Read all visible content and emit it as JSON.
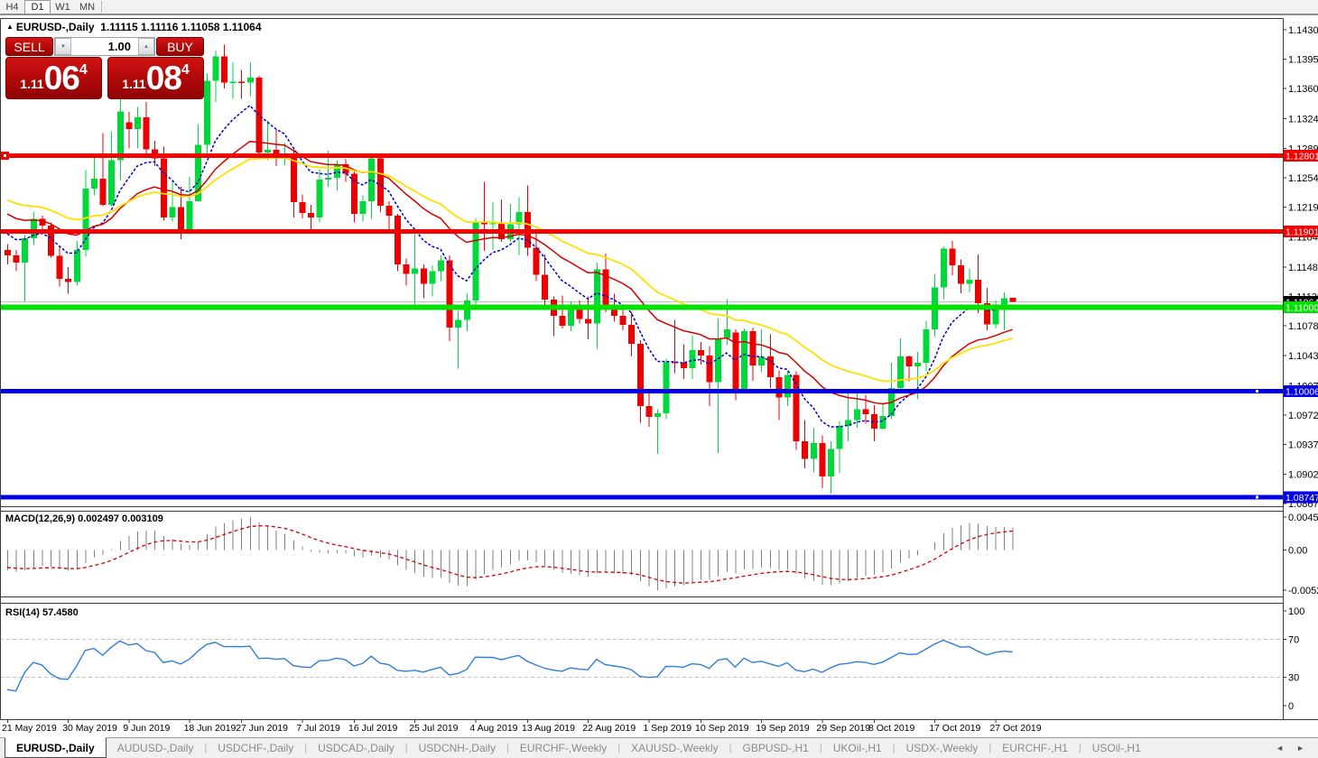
{
  "toolbar": {
    "timeframes": [
      {
        "label": "H4",
        "active": false
      },
      {
        "label": "D1",
        "active": true
      },
      {
        "label": "W1",
        "active": false
      },
      {
        "label": "MN",
        "active": false
      }
    ]
  },
  "chart": {
    "symbol_arrow_icon": "▲",
    "title_symbol": "EURUSD-,Daily",
    "title_ohlc": "1.11115 1.11116 1.11058 1.11064"
  },
  "trade": {
    "sell_label": "SELL",
    "buy_label": "BUY",
    "volume": "1.00",
    "volume_down_icon": "▼",
    "volume_up_icon": "▲",
    "sell_price": {
      "prefix": "1.11",
      "big": "06",
      "sup": "4"
    },
    "buy_price": {
      "prefix": "1.11",
      "big": "08",
      "sup": "4"
    }
  },
  "indicators": {
    "macd": {
      "label": "MACD(12,26,9) 0.002497 0.003109",
      "params": {
        "fast": 12,
        "slow": 26,
        "signal": 9
      },
      "current_main": "0.002497",
      "current_signal": "0.003109",
      "axis_labels": {
        "top": "0.004536",
        "zero": "0.00",
        "bottom": "-0.005205"
      }
    },
    "rsi": {
      "label": "RSI(14) 57.4580",
      "period": 14,
      "current_value": "57.4580",
      "axis_labels": [
        "100",
        "70",
        "30",
        "0"
      ],
      "levels": [
        70,
        30
      ]
    }
  },
  "price_axis": {
    "labels": [
      "1.14300",
      "1.13950",
      "1.13600",
      "1.13240",
      "1.12890",
      "1.12540",
      "1.12190",
      "1.11840",
      "1.11480",
      "1.11130",
      "1.10780",
      "1.10430",
      "1.10070",
      "1.09720",
      "1.09370",
      "1.09020",
      "1.08670"
    ],
    "current_price_badge": {
      "text": "1.11064",
      "color": "#000000"
    }
  },
  "chart_data": {
    "type": "candlestick",
    "symbol": "EURUSD",
    "timeframe": "Daily",
    "y_range": {
      "top_price": 1.14437,
      "bottom_price": 1.08638
    },
    "colors": {
      "bull": "#00D83C",
      "bear": "#ED0000",
      "background": "#FFFFFF",
      "ma_fast": "#0000C8",
      "ma_medium": "#D40000",
      "ma_slow": "#FFE000",
      "macd_hist": "#808080",
      "macd_signal": "#D40000",
      "rsi_line": "#2F7ED8",
      "current_price_line": "#C0C0C0",
      "pane_border": "#3A3A3A"
    },
    "moving_averages": [
      {
        "name": "fast",
        "period": 9,
        "color": "#0000C8"
      },
      {
        "name": "medium",
        "period": 21,
        "color": "#D40000"
      },
      {
        "name": "slow",
        "period": 34,
        "color": "#FFE000"
      }
    ],
    "hlines": [
      {
        "price": 1.12801,
        "color": "#F30000",
        "width": 5,
        "badge": true,
        "left_handle": true
      },
      {
        "price": 1.11901,
        "color": "#F30000",
        "width": 5,
        "badge": true,
        "left_handle": false
      },
      {
        "price": 1.11,
        "color": "#00E100",
        "width": 6,
        "badge": true,
        "left_handle": false
      },
      {
        "price": 1.10006,
        "color": "#0000E8",
        "width": 5,
        "badge": true,
        "mid_handle": true
      },
      {
        "price": 1.08747,
        "color": "#0000E8",
        "width": 5,
        "badge": true,
        "mid_handle": true
      }
    ],
    "current_price_line": {
      "price": 1.11064,
      "badge": "1.11064"
    },
    "x_ticks": [
      {
        "i": 0,
        "label": "21 May 2019"
      },
      {
        "i": 7,
        "label": "30 May 2019"
      },
      {
        "i": 14,
        "label": "9 Jun 2019"
      },
      {
        "i": 21,
        "label": "18 Jun 2019"
      },
      {
        "i": 27,
        "label": "27 Jun 2019"
      },
      {
        "i": 34,
        "label": "7 Jul 2019"
      },
      {
        "i": 40,
        "label": "16 Jul 2019"
      },
      {
        "i": 47,
        "label": "25 Jul 2019"
      },
      {
        "i": 54,
        "label": "4 Aug 2019"
      },
      {
        "i": 60,
        "label": "13 Aug 2019"
      },
      {
        "i": 67,
        "label": "22 Aug 2019"
      },
      {
        "i": 74,
        "label": "1 Sep 2019"
      },
      {
        "i": 80,
        "label": "10 Sep 2019"
      },
      {
        "i": 87,
        "label": "19 Sep 2019"
      },
      {
        "i": 94,
        "label": "29 Sep 2019"
      },
      {
        "i": 100,
        "label": "8 Oct 2019"
      },
      {
        "i": 107,
        "label": "17 Oct 2019"
      },
      {
        "i": 114,
        "label": "27 Oct 2019"
      }
    ],
    "prehistory_closes": [
      1.1286,
      1.1292,
      1.1283,
      1.1276,
      1.128,
      1.1271,
      1.1262,
      1.1268,
      1.1258,
      1.125,
      1.1254,
      1.1244,
      1.1236,
      1.1241,
      1.1232,
      1.1224,
      1.1228,
      1.1219,
      1.1211,
      1.1215,
      1.1206,
      1.1199,
      1.1203,
      1.1194,
      1.1187,
      1.119,
      1.1181,
      1.1174
    ],
    "candles": [
      [
        1.1168,
        1.1175,
        1.1151,
        1.1162
      ],
      [
        1.1162,
        1.1168,
        1.1143,
        1.1153
      ],
      [
        1.1153,
        1.1186,
        1.1107,
        1.1182
      ],
      [
        1.1182,
        1.1213,
        1.1174,
        1.1205
      ],
      [
        1.1205,
        1.1209,
        1.1187,
        1.1197
      ],
      [
        1.1197,
        1.1201,
        1.1159,
        1.1161
      ],
      [
        1.1161,
        1.1172,
        1.1125,
        1.1134
      ],
      [
        1.1134,
        1.1148,
        1.1116,
        1.113
      ],
      [
        1.113,
        1.1179,
        1.1126,
        1.1168
      ],
      [
        1.1168,
        1.1263,
        1.116,
        1.1241
      ],
      [
        1.1241,
        1.1279,
        1.1233,
        1.1253
      ],
      [
        1.1253,
        1.1307,
        1.122,
        1.1222
      ],
      [
        1.1222,
        1.1309,
        1.122,
        1.1275
      ],
      [
        1.1275,
        1.1348,
        1.1251,
        1.1333
      ],
      [
        1.132,
        1.1332,
        1.1289,
        1.1312
      ],
      [
        1.1312,
        1.1338,
        1.1289,
        1.1326
      ],
      [
        1.1326,
        1.1344,
        1.1282,
        1.1288
      ],
      [
        1.1288,
        1.1298,
        1.1268,
        1.1277
      ],
      [
        1.1277,
        1.1291,
        1.1203,
        1.1207
      ],
      [
        1.1207,
        1.1249,
        1.1202,
        1.1219
      ],
      [
        1.1219,
        1.1243,
        1.1181,
        1.1193
      ],
      [
        1.1193,
        1.1255,
        1.1187,
        1.1226
      ],
      [
        1.1226,
        1.1318,
        1.1226,
        1.1293
      ],
      [
        1.1293,
        1.1378,
        1.1282,
        1.1369
      ],
      [
        1.1369,
        1.1405,
        1.1344,
        1.1398
      ],
      [
        1.1398,
        1.1412,
        1.136,
        1.1367
      ],
      [
        1.1367,
        1.1391,
        1.1348,
        1.1368
      ],
      [
        1.1368,
        1.1382,
        1.1348,
        1.1367
      ],
      [
        1.1367,
        1.1391,
        1.1351,
        1.1373
      ],
      [
        1.1373,
        1.1375,
        1.1281,
        1.1284
      ],
      [
        1.1284,
        1.1322,
        1.1275,
        1.1287
      ],
      [
        1.1287,
        1.1312,
        1.1268,
        1.1278
      ],
      [
        1.1278,
        1.1295,
        1.1269,
        1.1283
      ],
      [
        1.1283,
        1.1288,
        1.1207,
        1.1225
      ],
      [
        1.1225,
        1.1234,
        1.1206,
        1.1212
      ],
      [
        1.1212,
        1.1222,
        1.1193,
        1.1207
      ],
      [
        1.1207,
        1.1264,
        1.1201,
        1.1252
      ],
      [
        1.1252,
        1.1286,
        1.1243,
        1.1254
      ],
      [
        1.1254,
        1.1275,
        1.1239,
        1.127
      ],
      [
        1.127,
        1.1276,
        1.1249,
        1.1259
      ],
      [
        1.1259,
        1.1263,
        1.1201,
        1.1211
      ],
      [
        1.1211,
        1.1233,
        1.1202,
        1.1226
      ],
      [
        1.1226,
        1.1282,
        1.1205,
        1.1277
      ],
      [
        1.1277,
        1.1283,
        1.1213,
        1.1221
      ],
      [
        1.1221,
        1.1226,
        1.1192,
        1.1209
      ],
      [
        1.1209,
        1.1211,
        1.1143,
        1.1151
      ],
      [
        1.1151,
        1.1158,
        1.1126,
        1.114
      ],
      [
        1.114,
        1.1187,
        1.1101,
        1.1146
      ],
      [
        1.1146,
        1.1151,
        1.1111,
        1.1128
      ],
      [
        1.1128,
        1.115,
        1.1113,
        1.1143
      ],
      [
        1.1143,
        1.1162,
        1.1131,
        1.1156
      ],
      [
        1.1156,
        1.1162,
        1.106,
        1.1076
      ],
      [
        1.1076,
        1.1096,
        1.1027,
        1.1085
      ],
      [
        1.1085,
        1.1116,
        1.1072,
        1.1108
      ],
      [
        1.1108,
        1.1206,
        1.1101,
        1.1202
      ],
      [
        1.1202,
        1.1249,
        1.1167,
        1.1199
      ],
      [
        1.1199,
        1.1225,
        1.1168,
        1.12
      ],
      [
        1.12,
        1.1228,
        1.1178,
        1.1181
      ],
      [
        1.1181,
        1.1223,
        1.1178,
        1.1199
      ],
      [
        1.1199,
        1.1231,
        1.1162,
        1.1213
      ],
      [
        1.1213,
        1.1245,
        1.1161,
        1.1171
      ],
      [
        1.1171,
        1.1192,
        1.1131,
        1.1139
      ],
      [
        1.1139,
        1.1163,
        1.1103,
        1.1109
      ],
      [
        1.1109,
        1.1113,
        1.1066,
        1.109
      ],
      [
        1.109,
        1.1114,
        1.1075,
        1.1078
      ],
      [
        1.1078,
        1.1107,
        1.1072,
        1.1098
      ],
      [
        1.1098,
        1.1108,
        1.1081,
        1.1086
      ],
      [
        1.1086,
        1.1113,
        1.1062,
        1.1081
      ],
      [
        1.1081,
        1.1153,
        1.1051,
        1.1145
      ],
      [
        1.1145,
        1.1164,
        1.1094,
        1.1101
      ],
      [
        1.1101,
        1.1116,
        1.1083,
        1.109
      ],
      [
        1.109,
        1.1098,
        1.1073,
        1.1079
      ],
      [
        1.1079,
        1.1094,
        1.1042,
        1.1057
      ],
      [
        1.1057,
        1.1061,
        1.0963,
        1.0983
      ],
      [
        1.0983,
        1.0998,
        1.0958,
        1.097
      ],
      [
        1.097,
        1.0979,
        1.0926,
        1.0974
      ],
      [
        1.0974,
        1.1039,
        1.0967,
        1.1035
      ],
      [
        1.1035,
        1.1085,
        1.1022,
        1.1034
      ],
      [
        1.1034,
        1.1056,
        1.1015,
        1.1028
      ],
      [
        1.1028,
        1.1067,
        1.1015,
        1.1049
      ],
      [
        1.1049,
        1.1059,
        1.1032,
        1.1043
      ],
      [
        1.1043,
        1.1054,
        1.0983,
        1.1011
      ],
      [
        1.1011,
        1.1087,
        1.0927,
        1.1063
      ],
      [
        1.1063,
        1.111,
        1.1055,
        1.1074
      ],
      [
        1.107,
        1.1074,
        1.099,
        1.1003
      ],
      [
        1.1003,
        1.1075,
        1.0998,
        1.1072
      ],
      [
        1.1072,
        1.1076,
        1.1013,
        1.1031
      ],
      [
        1.1031,
        1.1074,
        1.1023,
        1.1042
      ],
      [
        1.1042,
        1.1068,
        1.1004,
        1.1017
      ],
      [
        1.1017,
        1.1025,
        1.0966,
        1.0993
      ],
      [
        1.0993,
        1.1024,
        1.0983,
        1.102
      ],
      [
        1.102,
        1.1024,
        1.0931,
        1.0941
      ],
      [
        1.0941,
        1.0966,
        1.0909,
        1.092
      ],
      [
        1.092,
        1.0957,
        1.0904,
        1.0939
      ],
      [
        1.0939,
        1.0948,
        1.0885,
        1.0899
      ],
      [
        1.0899,
        1.0941,
        1.0879,
        1.0932
      ],
      [
        1.0932,
        1.0965,
        1.0903,
        1.0959
      ],
      [
        1.0959,
        1.0999,
        1.0941,
        1.0966
      ],
      [
        1.0966,
        1.0998,
        1.0957,
        1.0979
      ],
      [
        1.0979,
        1.0996,
        1.0962,
        1.0973
      ],
      [
        1.0973,
        1.0984,
        1.0941,
        1.0956
      ],
      [
        1.0956,
        1.0987,
        1.0955,
        1.0971
      ],
      [
        1.0971,
        1.1034,
        1.0967,
        1.1004
      ],
      [
        1.1004,
        1.1063,
        1.1002,
        1.1042
      ],
      [
        1.1042,
        1.1043,
        1.1012,
        1.103
      ],
      [
        1.103,
        1.1047,
        1.0991,
        1.1034
      ],
      [
        1.1034,
        1.1084,
        1.1024,
        1.1074
      ],
      [
        1.1074,
        1.114,
        1.1065,
        1.1124
      ],
      [
        1.1124,
        1.1172,
        1.111,
        1.117
      ],
      [
        1.117,
        1.1179,
        1.1138,
        1.115
      ],
      [
        1.115,
        1.1157,
        1.1117,
        1.1128
      ],
      [
        1.1128,
        1.1146,
        1.1118,
        1.1133
      ],
      [
        1.1133,
        1.1163,
        1.1093,
        1.1105
      ],
      [
        1.1105,
        1.1123,
        1.1073,
        1.108
      ],
      [
        1.108,
        1.1108,
        1.1075,
        1.11
      ],
      [
        1.11,
        1.1118,
        1.1073,
        1.1111
      ],
      [
        1.11115,
        1.11116,
        1.11058,
        1.11064
      ]
    ]
  },
  "tabbar": {
    "tabs": [
      {
        "label": "EURUSD-,Daily",
        "active": true
      },
      {
        "label": "AUDUSD-,Daily",
        "active": false
      },
      {
        "label": "USDCHF-,Daily",
        "active": false
      },
      {
        "label": "USDCAD-,Daily",
        "active": false
      },
      {
        "label": "USDCNH-,Daily",
        "active": false
      },
      {
        "label": "EURCHF-,Weekly",
        "active": false
      },
      {
        "label": "XAUUSD-,Weekly",
        "active": false
      },
      {
        "label": "GBPUSD-,H1",
        "active": false
      },
      {
        "label": "UKOil-,H1",
        "active": false
      },
      {
        "label": "USDX-,Weekly",
        "active": false
      },
      {
        "label": "EURCHF-,H1",
        "active": false
      },
      {
        "label": "USOil-,H1",
        "active": false
      }
    ],
    "separator": "|",
    "scroll_left_icon": "◄",
    "scroll_right_icon": "►"
  }
}
